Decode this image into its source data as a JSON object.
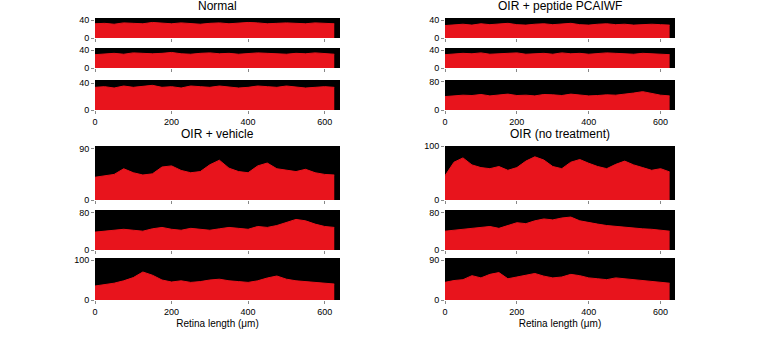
{
  "chart_data": [
    {
      "type": "area",
      "title": "Normal",
      "color": "#e8141c",
      "grid": false,
      "tick_labels": "y",
      "x": [
        0,
        25,
        50,
        75,
        100,
        125,
        150,
        175,
        200,
        225,
        250,
        275,
        300,
        325,
        350,
        375,
        400,
        425,
        450,
        475,
        500,
        525,
        550,
        575,
        600,
        625
      ],
      "values": [
        32,
        33,
        31,
        34,
        33,
        32,
        35,
        33,
        32,
        34,
        33,
        31,
        33,
        34,
        32,
        33,
        35,
        34,
        32,
        33,
        34,
        33,
        32,
        34,
        33,
        32
      ],
      "xlim": [
        0,
        640
      ],
      "xticks": [
        0,
        200,
        400,
        600
      ],
      "ylim": [
        0,
        45
      ],
      "yticks": [
        0,
        40
      ]
    },
    {
      "type": "area",
      "color": "#e8141c",
      "grid": false,
      "tick_labels": "y",
      "x": [
        0,
        25,
        50,
        75,
        100,
        125,
        150,
        175,
        200,
        225,
        250,
        275,
        300,
        325,
        350,
        375,
        400,
        425,
        450,
        475,
        500,
        525,
        550,
        575,
        600,
        625
      ],
      "values": [
        30,
        32,
        33,
        31,
        34,
        33,
        32,
        33,
        35,
        32,
        31,
        33,
        34,
        32,
        33,
        31,
        32,
        34,
        33,
        32,
        31,
        33,
        32,
        34,
        32,
        31
      ],
      "xlim": [
        0,
        640
      ],
      "xticks": [
        0,
        200,
        400,
        600
      ],
      "ylim": [
        0,
        45
      ],
      "yticks": [
        0,
        40
      ]
    },
    {
      "type": "area",
      "color": "#e8141c",
      "grid": false,
      "x": [
        0,
        25,
        50,
        75,
        100,
        125,
        150,
        175,
        200,
        225,
        250,
        275,
        300,
        325,
        350,
        375,
        400,
        425,
        450,
        475,
        500,
        525,
        550,
        575,
        600,
        625
      ],
      "values": [
        34,
        35,
        33,
        36,
        34,
        35,
        37,
        34,
        35,
        33,
        36,
        35,
        34,
        36,
        35,
        33,
        34,
        36,
        35,
        34,
        36,
        35,
        33,
        34,
        35,
        34
      ],
      "xlim": [
        0,
        640
      ],
      "xticks": [
        0,
        200,
        400,
        600
      ],
      "ylim": [
        0,
        45
      ],
      "yticks": [
        0,
        40
      ]
    },
    {
      "type": "area",
      "title": "OIR + peptide PCAIWF",
      "color": "#e8141c",
      "grid": false,
      "tick_labels": "y",
      "x": [
        0,
        25,
        50,
        75,
        100,
        125,
        150,
        175,
        200,
        225,
        250,
        275,
        300,
        325,
        350,
        375,
        400,
        425,
        450,
        475,
        500,
        525,
        550,
        575,
        600,
        625
      ],
      "values": [
        28,
        30,
        31,
        29,
        32,
        30,
        31,
        33,
        30,
        29,
        31,
        32,
        30,
        31,
        33,
        30,
        29,
        31,
        32,
        30,
        31,
        29,
        30,
        31,
        30,
        29
      ],
      "xlim": [
        0,
        640
      ],
      "xticks": [
        0,
        200,
        400,
        600
      ],
      "ylim": [
        0,
        45
      ],
      "yticks": [
        0,
        40
      ]
    },
    {
      "type": "area",
      "color": "#e8141c",
      "grid": false,
      "tick_labels": "y",
      "x": [
        0,
        25,
        50,
        75,
        100,
        125,
        150,
        175,
        200,
        225,
        250,
        275,
        300,
        325,
        350,
        375,
        400,
        425,
        450,
        475,
        500,
        525,
        550,
        575,
        600,
        625
      ],
      "values": [
        30,
        31,
        33,
        32,
        34,
        31,
        32,
        33,
        34,
        31,
        32,
        33,
        31,
        34,
        32,
        33,
        31,
        32,
        34,
        33,
        32,
        31,
        33,
        32,
        31,
        30
      ],
      "xlim": [
        0,
        640
      ],
      "xticks": [
        0,
        200,
        400,
        600
      ],
      "ylim": [
        0,
        45
      ],
      "yticks": [
        0,
        40
      ]
    },
    {
      "type": "area",
      "color": "#e8141c",
      "grid": false,
      "x": [
        0,
        25,
        50,
        75,
        100,
        125,
        150,
        175,
        200,
        225,
        250,
        275,
        300,
        325,
        350,
        375,
        400,
        425,
        450,
        475,
        500,
        525,
        550,
        575,
        600,
        625
      ],
      "values": [
        38,
        40,
        42,
        41,
        44,
        40,
        43,
        45,
        41,
        42,
        40,
        44,
        43,
        41,
        45,
        42,
        40,
        41,
        43,
        42,
        44,
        48,
        52,
        46,
        42,
        40
      ],
      "xlim": [
        0,
        640
      ],
      "xticks": [
        0,
        200,
        400,
        600
      ],
      "ylim": [
        0,
        85
      ],
      "yticks": [
        0,
        80
      ]
    },
    {
      "type": "area",
      "title": "OIR + vehicle",
      "color": "#e8141c",
      "grid": false,
      "tick_labels": "y",
      "x": [
        0,
        25,
        50,
        75,
        100,
        125,
        150,
        175,
        200,
        225,
        250,
        275,
        300,
        325,
        350,
        375,
        400,
        425,
        450,
        475,
        500,
        525,
        550,
        575,
        600,
        625
      ],
      "values": [
        40,
        42,
        45,
        55,
        48,
        44,
        46,
        58,
        60,
        52,
        48,
        50,
        62,
        70,
        56,
        50,
        48,
        60,
        65,
        55,
        52,
        50,
        54,
        48,
        45,
        44
      ],
      "xlim": [
        0,
        640
      ],
      "xticks": [
        0,
        200,
        400,
        600
      ],
      "ylim": [
        0,
        95
      ],
      "yticks": [
        0,
        90
      ]
    },
    {
      "type": "area",
      "color": "#e8141c",
      "grid": false,
      "tick_labels": "y",
      "x": [
        0,
        25,
        50,
        75,
        100,
        125,
        150,
        175,
        200,
        225,
        250,
        275,
        300,
        325,
        350,
        375,
        400,
        425,
        450,
        475,
        500,
        525,
        550,
        575,
        600,
        625
      ],
      "values": [
        38,
        40,
        42,
        44,
        42,
        40,
        45,
        48,
        44,
        42,
        46,
        44,
        42,
        45,
        48,
        46,
        44,
        50,
        48,
        52,
        58,
        65,
        62,
        55,
        50,
        48
      ],
      "xlim": [
        0,
        640
      ],
      "xticks": [
        0,
        200,
        400,
        600
      ],
      "ylim": [
        0,
        85
      ],
      "yticks": [
        0,
        80
      ]
    },
    {
      "type": "area",
      "xlabel": "Retina length (μm)",
      "color": "#e8141c",
      "grid": false,
      "x": [
        0,
        25,
        50,
        75,
        100,
        125,
        150,
        175,
        200,
        225,
        250,
        275,
        300,
        325,
        350,
        375,
        400,
        425,
        450,
        475,
        500,
        525,
        550,
        575,
        600,
        625
      ],
      "values": [
        35,
        38,
        42,
        48,
        56,
        70,
        62,
        50,
        45,
        48,
        44,
        46,
        50,
        52,
        48,
        46,
        44,
        48,
        55,
        60,
        52,
        48,
        46,
        44,
        42,
        40
      ],
      "xlim": [
        0,
        640
      ],
      "xticks": [
        0,
        200,
        400,
        600
      ],
      "ylim": [
        0,
        105
      ],
      "yticks": [
        0,
        100
      ]
    },
    {
      "type": "area",
      "title": "OIR (no treatment)",
      "color": "#e8141c",
      "grid": false,
      "tick_labels": "y",
      "x": [
        0,
        25,
        50,
        75,
        100,
        125,
        150,
        175,
        200,
        225,
        250,
        275,
        300,
        325,
        350,
        375,
        400,
        425,
        450,
        475,
        500,
        525,
        550,
        575,
        600,
        625
      ],
      "values": [
        45,
        70,
        78,
        65,
        60,
        58,
        62,
        55,
        60,
        72,
        80,
        74,
        62,
        58,
        70,
        75,
        68,
        62,
        58,
        66,
        72,
        65,
        60,
        55,
        58,
        52
      ],
      "xlim": [
        0,
        640
      ],
      "xticks": [
        0,
        200,
        400,
        600
      ],
      "ylim": [
        0,
        100
      ],
      "yticks": [
        0,
        100
      ]
    },
    {
      "type": "area",
      "color": "#e8141c",
      "grid": false,
      "tick_labels": "y",
      "x": [
        0,
        25,
        50,
        75,
        100,
        125,
        150,
        175,
        200,
        225,
        250,
        275,
        300,
        325,
        350,
        375,
        400,
        425,
        450,
        475,
        500,
        525,
        550,
        575,
        600,
        625
      ],
      "values": [
        40,
        42,
        44,
        46,
        48,
        50,
        46,
        52,
        58,
        56,
        62,
        66,
        64,
        68,
        70,
        62,
        58,
        55,
        52,
        50,
        48,
        46,
        45,
        44,
        42,
        40
      ],
      "xlim": [
        0,
        640
      ],
      "xticks": [
        0,
        200,
        400,
        600
      ],
      "ylim": [
        0,
        85
      ],
      "yticks": [
        0,
        80
      ]
    },
    {
      "type": "area",
      "xlabel": "Retina length (μm)",
      "color": "#e8141c",
      "grid": false,
      "x": [
        0,
        25,
        50,
        75,
        100,
        125,
        150,
        175,
        200,
        225,
        250,
        275,
        300,
        325,
        350,
        375,
        400,
        425,
        450,
        475,
        500,
        525,
        550,
        575,
        600,
        625
      ],
      "values": [
        40,
        44,
        46,
        55,
        50,
        58,
        62,
        48,
        52,
        56,
        60,
        54,
        50,
        52,
        58,
        55,
        50,
        48,
        46,
        50,
        48,
        46,
        44,
        42,
        40,
        38
      ],
      "xlim": [
        0,
        640
      ],
      "xticks": [
        0,
        200,
        400,
        600
      ],
      "ylim": [
        0,
        95
      ],
      "yticks": [
        0,
        90
      ]
    }
  ]
}
